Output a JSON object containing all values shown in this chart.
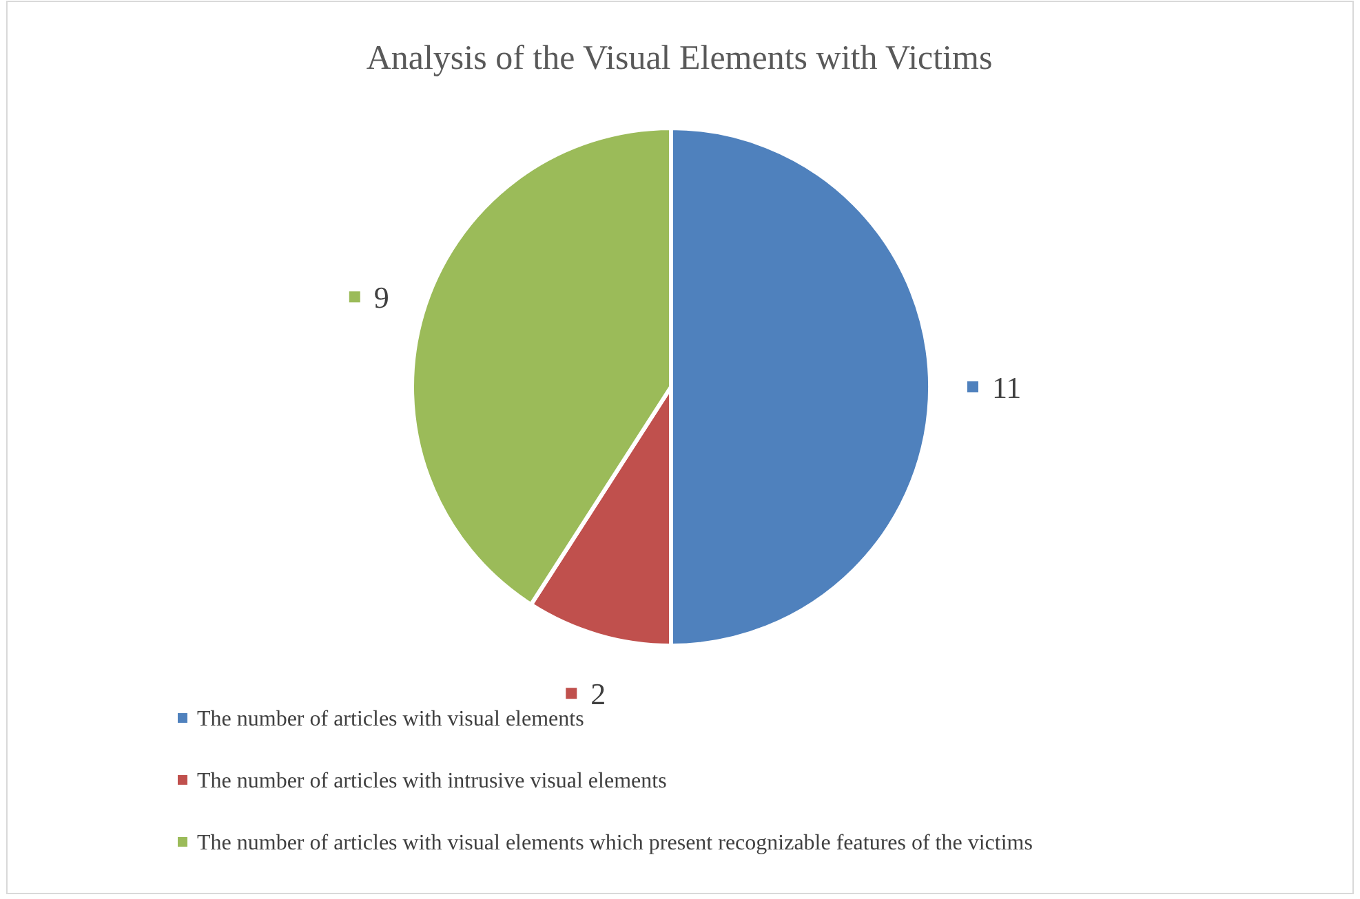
{
  "chart_data": {
    "type": "pie",
    "title": "Analysis of the Visual Elements with Victims",
    "categories": [
      "The number of articles with visual elements",
      "The number of articles with intrusive visual elements",
      "The number of articles with visual elements which present recognizable features of the victims"
    ],
    "values": [
      11,
      2,
      9
    ],
    "colors": [
      "#4f81bd",
      "#c0504d",
      "#9bbb59"
    ],
    "data_labels": true,
    "legend": "bottom"
  }
}
